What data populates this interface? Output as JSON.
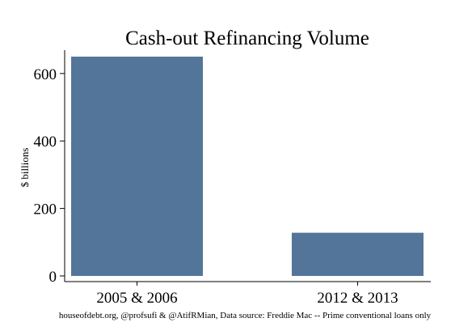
{
  "chart_data": {
    "type": "bar",
    "title": "Cash-out Refinancing Volume",
    "ylabel": "$ billions",
    "xlabel": "",
    "categories": [
      "2005 & 2006",
      "2012 & 2013"
    ],
    "values": [
      650,
      128
    ],
    "ylim": [
      0,
      650
    ],
    "yticks": [
      0,
      200,
      400,
      600
    ],
    "bar_color": "#53759a",
    "grid": false,
    "legend": "none"
  },
  "source_note": "houseofdebt.org, @profsufi & @AtifRMian, Data source: Freddie Mac -- Prime conventional loans only"
}
